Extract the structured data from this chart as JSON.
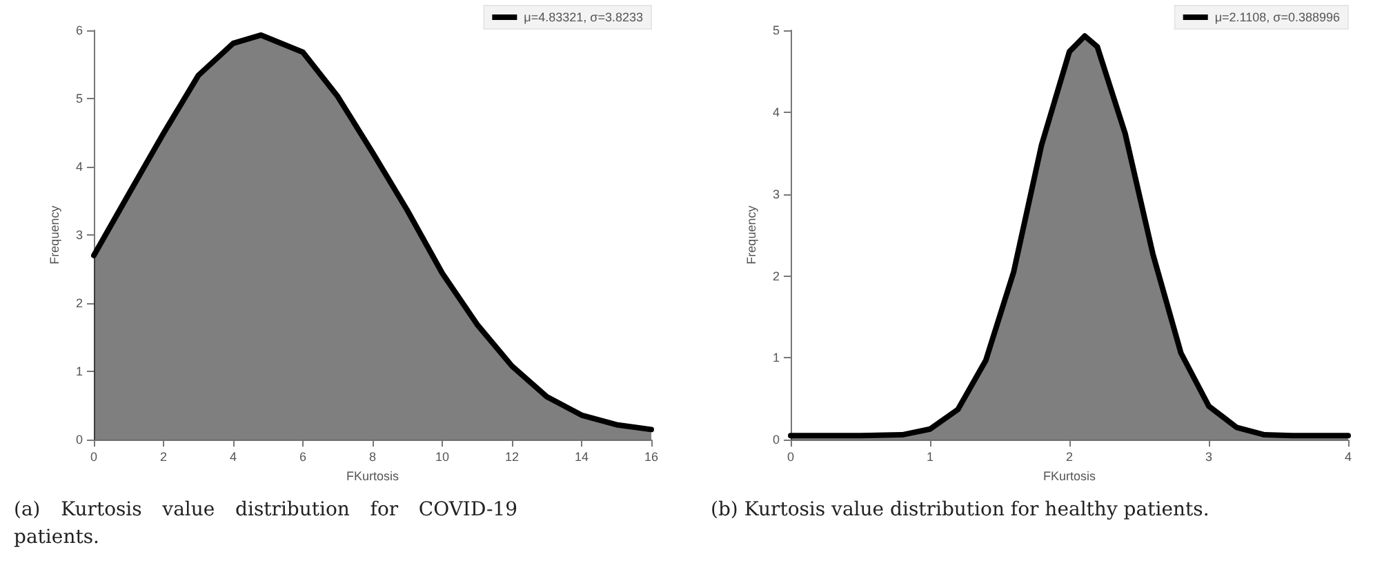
{
  "chart_data": [
    {
      "type": "area",
      "xlabel": "FKurtosis",
      "ylabel": "Frequency",
      "xlim": [
        0,
        16
      ],
      "xticks": [
        0,
        2,
        4,
        6,
        8,
        10,
        12,
        14,
        16
      ],
      "ylim": [
        0,
        6
      ],
      "yticks": [
        0,
        1,
        2,
        3,
        4,
        5,
        6
      ],
      "grid": false,
      "legend": "top right",
      "marker": "none",
      "line_style": "solid",
      "annotations": [
        "(a) Kurtosis value distribution for COVID-19 patients."
      ],
      "series": [
        {
          "name": "μ=4.83321, σ=3.8233",
          "color": "#000000",
          "x": [
            0,
            1,
            2,
            3,
            4,
            4.8,
            6,
            7,
            8,
            9,
            10,
            11,
            12,
            13,
            14,
            15,
            16
          ],
          "values": [
            2.7,
            3.6,
            4.49,
            5.34,
            5.81,
            5.93,
            5.68,
            5.03,
            4.21,
            3.36,
            2.44,
            1.69,
            1.08,
            0.63,
            0.36,
            0.22,
            0.15
          ]
        }
      ]
    },
    {
      "type": "area",
      "xlabel": "FKurtosis",
      "ylabel": "Frequency",
      "xlim": [
        0,
        4
      ],
      "xticks": [
        0,
        1,
        2,
        3,
        4
      ],
      "ylim": [
        0,
        5
      ],
      "yticks": [
        0,
        1,
        2,
        3,
        4,
        5
      ],
      "grid": false,
      "legend": "top right",
      "marker": "none",
      "line_style": "solid",
      "annotations": [
        "(b) Kurtosis value distribution for healthy patients."
      ],
      "series": [
        {
          "name": "μ=2.1108, σ=0.388996",
          "color": "#000000",
          "x": [
            0,
            0.5,
            0.8,
            1.0,
            1.2,
            1.4,
            1.6,
            1.8,
            2.0,
            2.11,
            2.2,
            2.4,
            2.6,
            2.8,
            3.0,
            3.2,
            3.4,
            3.6,
            4.0
          ],
          "values": [
            0.05,
            0.05,
            0.06,
            0.13,
            0.37,
            0.97,
            2.05,
            3.6,
            4.74,
            4.93,
            4.8,
            3.74,
            2.26,
            1.06,
            0.41,
            0.15,
            0.06,
            0.05,
            0.05
          ]
        }
      ]
    }
  ]
}
